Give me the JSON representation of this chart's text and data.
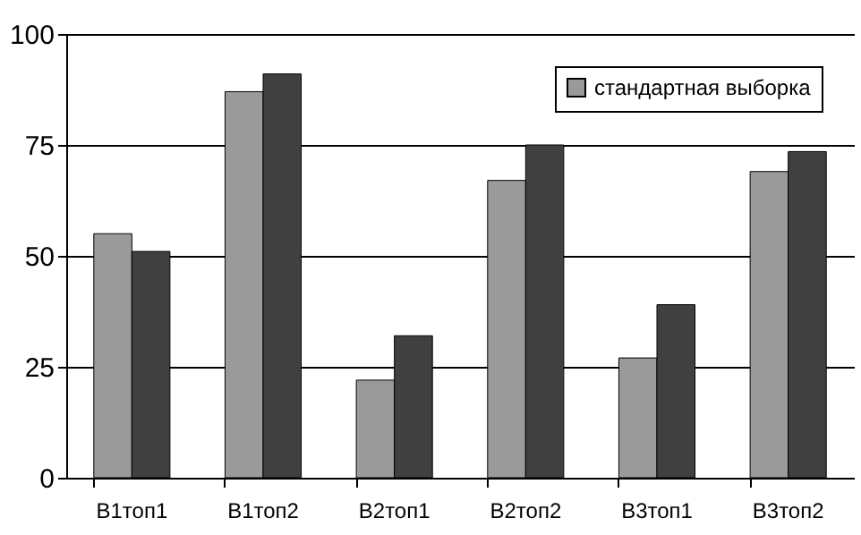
{
  "chart_data": {
    "type": "bar",
    "categories": [
      "В1топ1",
      "В1топ2",
      "В2топ1",
      "В2топ2",
      "В3топ1",
      "В3топ2"
    ],
    "series": [
      {
        "name": "стандартная выборка",
        "color": "#9a9a9a",
        "values": [
          55,
          87,
          22,
          67,
          27,
          69
        ]
      },
      {
        "color": "#404040",
        "values": [
          51,
          91,
          32,
          75,
          39,
          73.5
        ]
      }
    ],
    "ylim": [
      0,
      100
    ],
    "yticks": [
      0,
      25,
      50,
      75,
      100
    ],
    "grid": "y",
    "legend": "top right"
  }
}
